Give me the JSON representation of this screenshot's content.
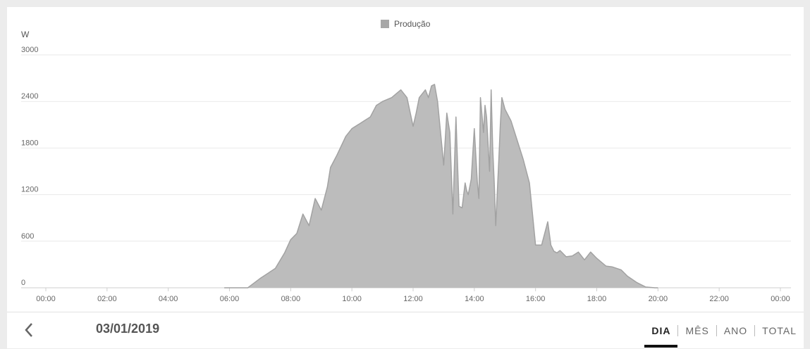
{
  "legend": {
    "label": "Produção",
    "color": "#a7a7a7"
  },
  "footer": {
    "date": "03/01/2019",
    "tabs": [
      {
        "label": "DIA",
        "active": true
      },
      {
        "label": "MÊS",
        "active": false
      },
      {
        "label": "ANO",
        "active": false
      },
      {
        "label": "TOTAL",
        "active": false
      }
    ]
  },
  "chart_data": {
    "type": "area",
    "ylabel": "W",
    "ylim": [
      0,
      3000
    ],
    "yticks": [
      0,
      600,
      1200,
      1800,
      2400,
      3000
    ],
    "xlim": [
      0,
      24
    ],
    "xticks": [
      "00:00",
      "02:00",
      "04:00",
      "06:00",
      "08:00",
      "10:00",
      "12:00",
      "14:00",
      "16:00",
      "18:00",
      "20:00",
      "22:00",
      "00:00"
    ],
    "grid": true,
    "legend_position": "top-center",
    "series": [
      {
        "name": "Produção",
        "color": "#bcbcbc",
        "line_color": "#a2a2a2",
        "x": [
          5.83,
          6.6,
          7.0,
          7.5,
          7.8,
          8.0,
          8.2,
          8.4,
          8.6,
          8.8,
          9.0,
          9.1,
          9.2,
          9.3,
          9.5,
          9.8,
          10.0,
          10.4,
          10.6,
          10.8,
          11.0,
          11.3,
          11.6,
          11.8,
          12.0,
          12.1,
          12.2,
          12.4,
          12.5,
          12.6,
          12.7,
          12.8,
          13.0,
          13.1,
          13.2,
          13.3,
          13.4,
          13.5,
          13.6,
          13.7,
          13.75,
          13.8,
          13.9,
          14.0,
          14.1,
          14.15,
          14.2,
          14.3,
          14.35,
          14.4,
          14.5,
          14.55,
          14.6,
          14.65,
          14.7,
          14.8,
          14.85,
          14.9,
          15.0,
          15.2,
          15.4,
          15.6,
          15.8,
          16.0,
          16.2,
          16.4,
          16.5,
          16.6,
          16.7,
          16.8,
          17.0,
          17.2,
          17.4,
          17.6,
          17.8,
          18.0,
          18.3,
          18.5,
          18.8,
          19.0,
          19.3,
          19.6,
          19.9,
          20.0
        ],
        "y": [
          0,
          0,
          120,
          250,
          450,
          620,
          700,
          950,
          800,
          1150,
          1000,
          1150,
          1300,
          1550,
          1700,
          1950,
          2050,
          2150,
          2200,
          2350,
          2400,
          2450,
          2550,
          2450,
          2080,
          2250,
          2450,
          2550,
          2450,
          2600,
          2620,
          2400,
          1580,
          2250,
          2000,
          950,
          2200,
          1050,
          1030,
          1350,
          1250,
          1200,
          1400,
          2050,
          1350,
          1150,
          2450,
          2000,
          2350,
          2200,
          1500,
          2550,
          1800,
          1350,
          800,
          1650,
          2100,
          2450,
          2300,
          2150,
          1900,
          1650,
          1350,
          550,
          550,
          850,
          550,
          470,
          450,
          480,
          400,
          410,
          460,
          360,
          460,
          380,
          280,
          270,
          230,
          150,
          70,
          10,
          0,
          0
        ]
      }
    ]
  }
}
